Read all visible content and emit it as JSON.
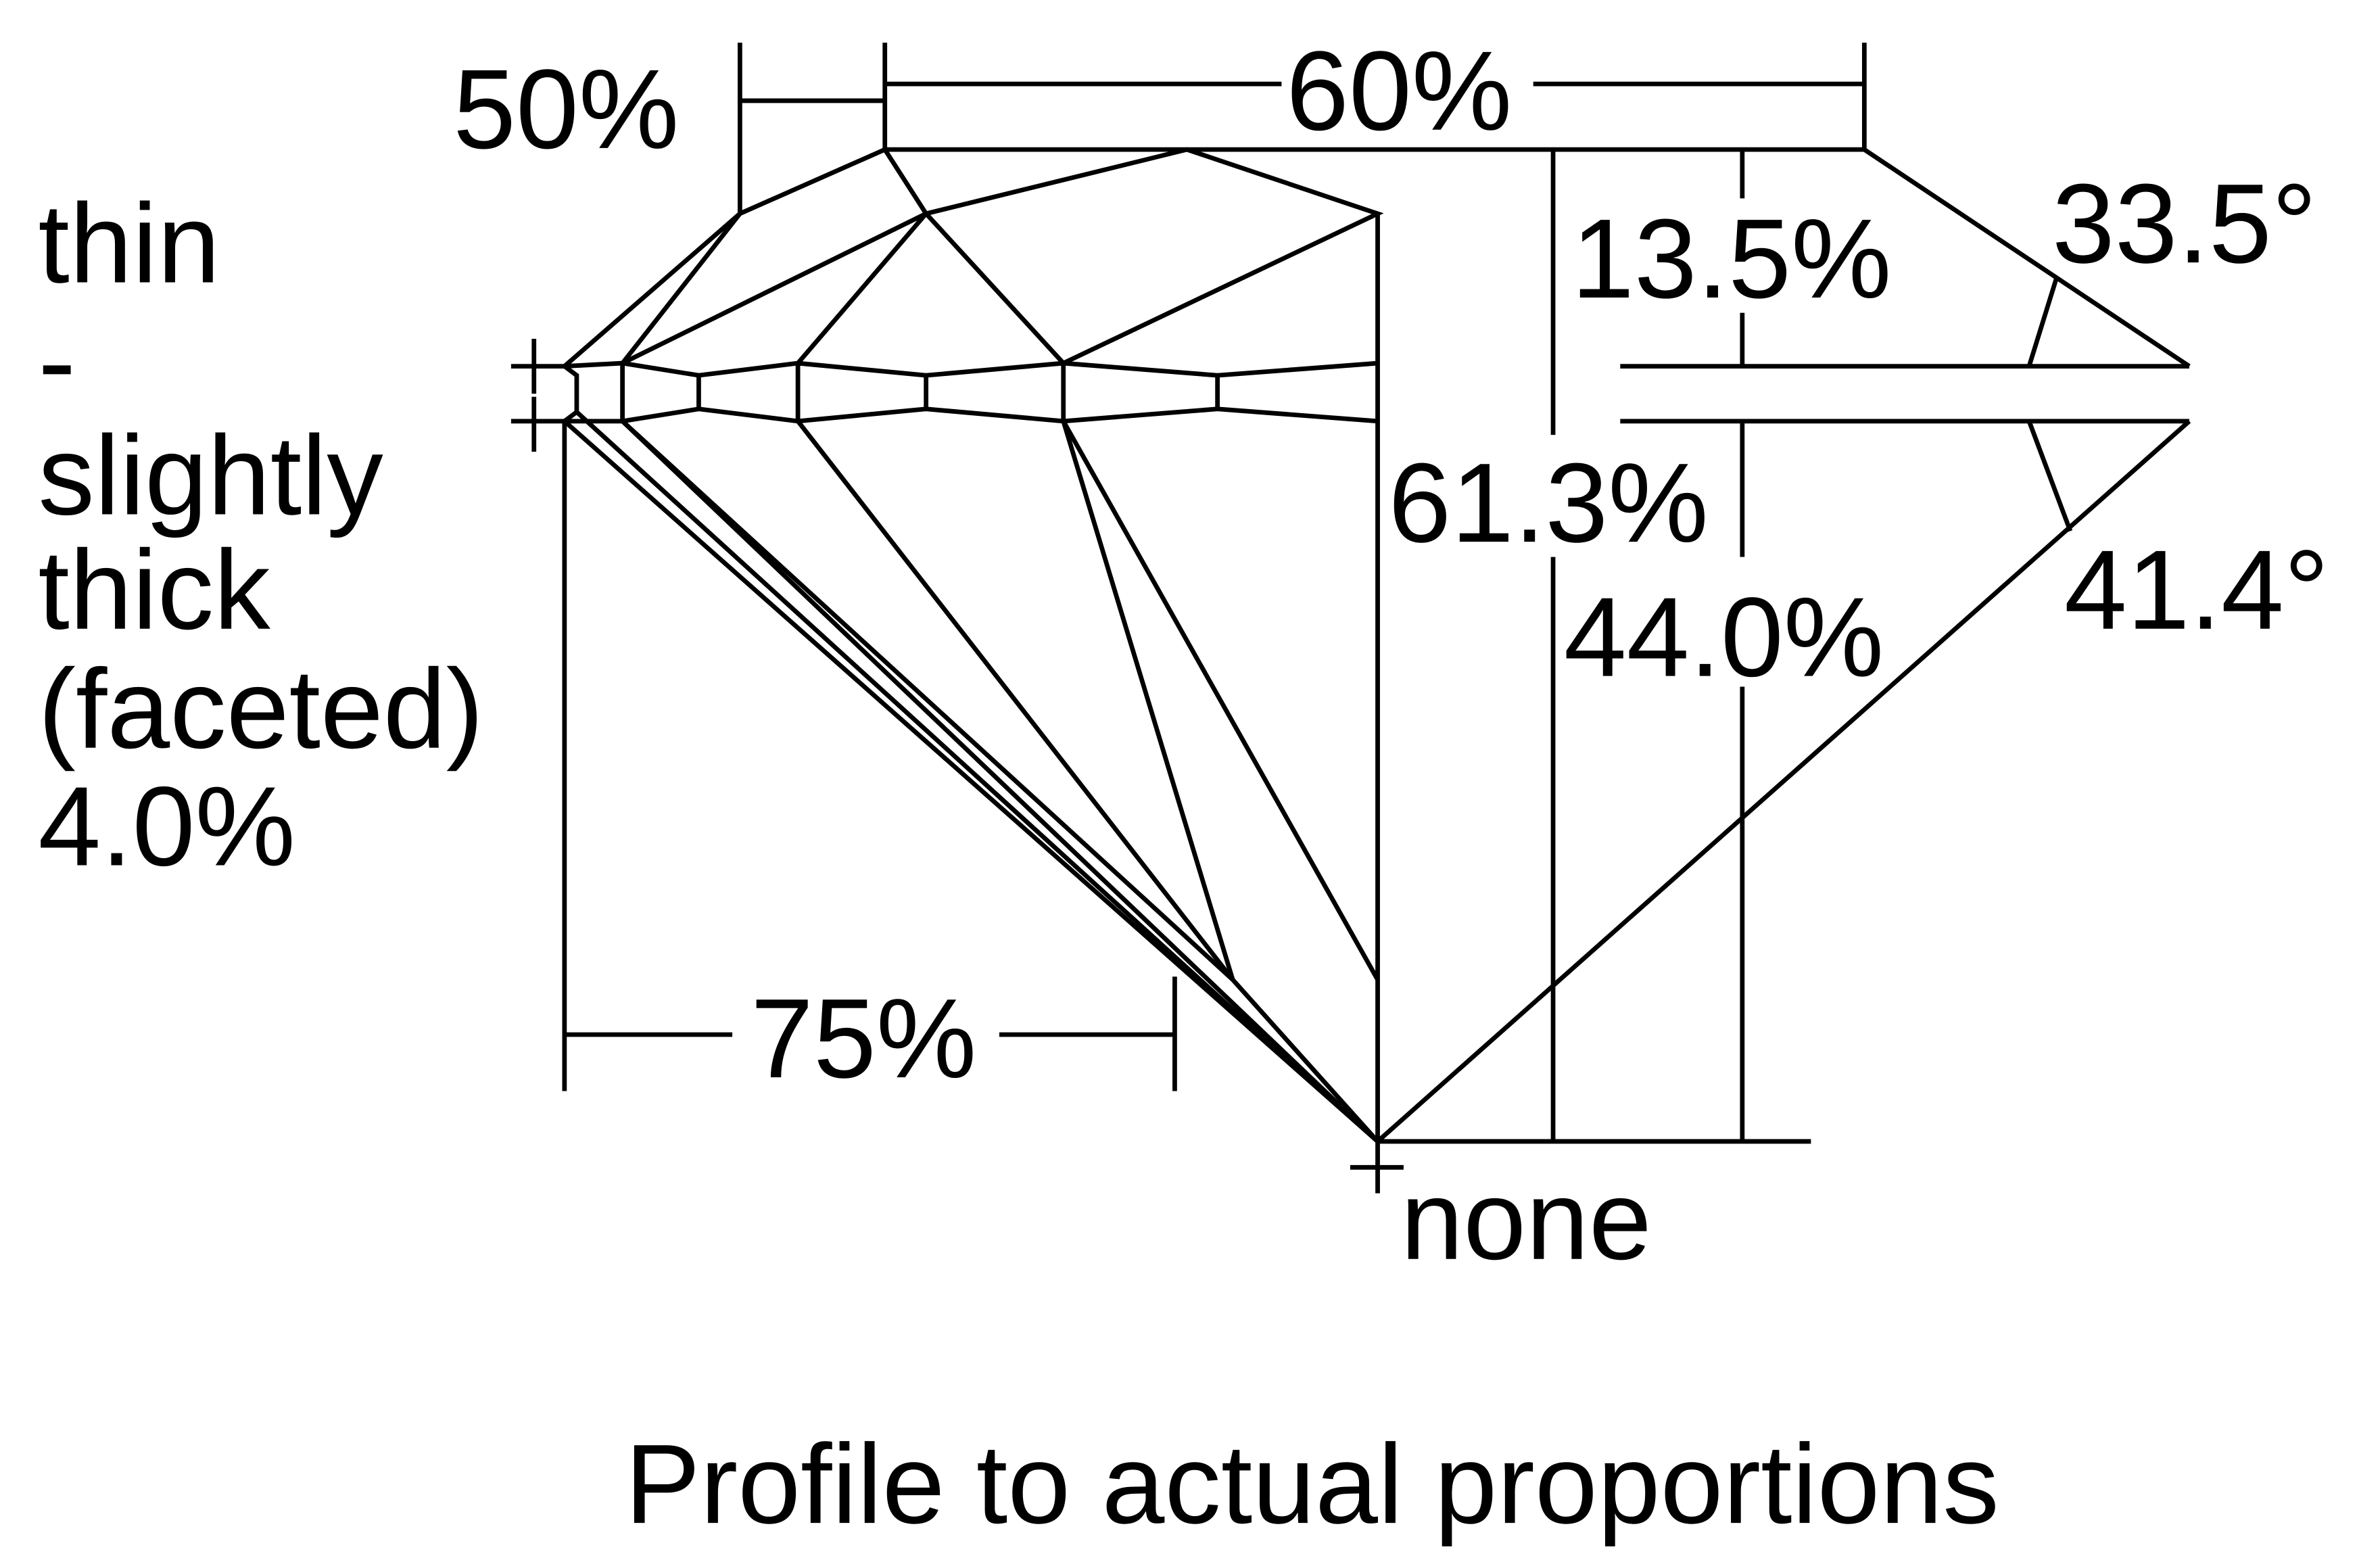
{
  "diagram": {
    "labels": {
      "table": "60%",
      "star": "50%",
      "crown_height": "13.5%",
      "crown_angle": "33.5°",
      "total_depth": "61.3%",
      "pavilion_depth": "44.0%",
      "pavilion_angle": "41.4°",
      "lower_half": "75%",
      "culet": "none",
      "girdle": [
        "thin",
        "-",
        "slightly",
        "thick",
        "(faceted)",
        "4.0%"
      ]
    },
    "caption": "Profile to actual proportions",
    "line_color": "#000000",
    "background": "#ffffff"
  }
}
